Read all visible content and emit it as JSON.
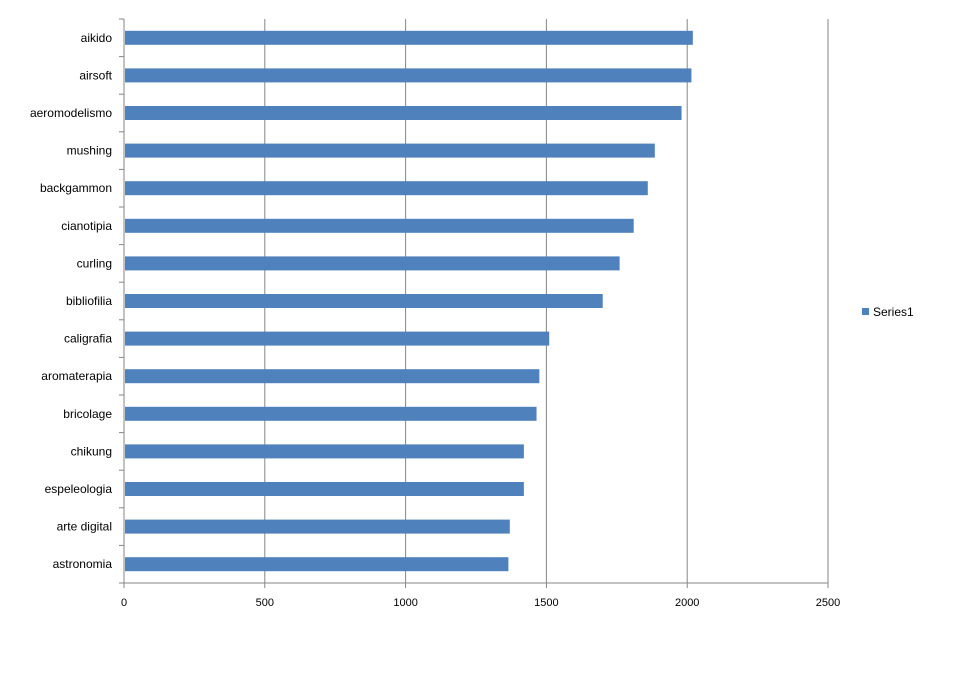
{
  "chart_data": {
    "type": "bar",
    "orientation": "horizontal",
    "categories": [
      "aikido",
      "airsoft",
      "aeromodelismo",
      "mushing",
      "backgammon",
      "cianotipia",
      "curling",
      "bibliofilia",
      "caligrafia",
      "aromaterapia",
      "bricolage",
      "chikung",
      "espeleologia",
      "arte digital",
      "astronomia"
    ],
    "series": [
      {
        "name": "Series1",
        "values": [
          2020,
          2015,
          1980,
          1885,
          1860,
          1810,
          1760,
          1700,
          1510,
          1475,
          1465,
          1420,
          1420,
          1370,
          1365
        ],
        "color": "#4F81BD"
      }
    ],
    "xlim": [
      0,
      2500
    ],
    "xticks": [
      "0",
      "500",
      "1000",
      "1500",
      "2000",
      "2500"
    ],
    "grid": true,
    "legend_position": "right",
    "title": "",
    "xlabel": "",
    "ylabel": ""
  }
}
